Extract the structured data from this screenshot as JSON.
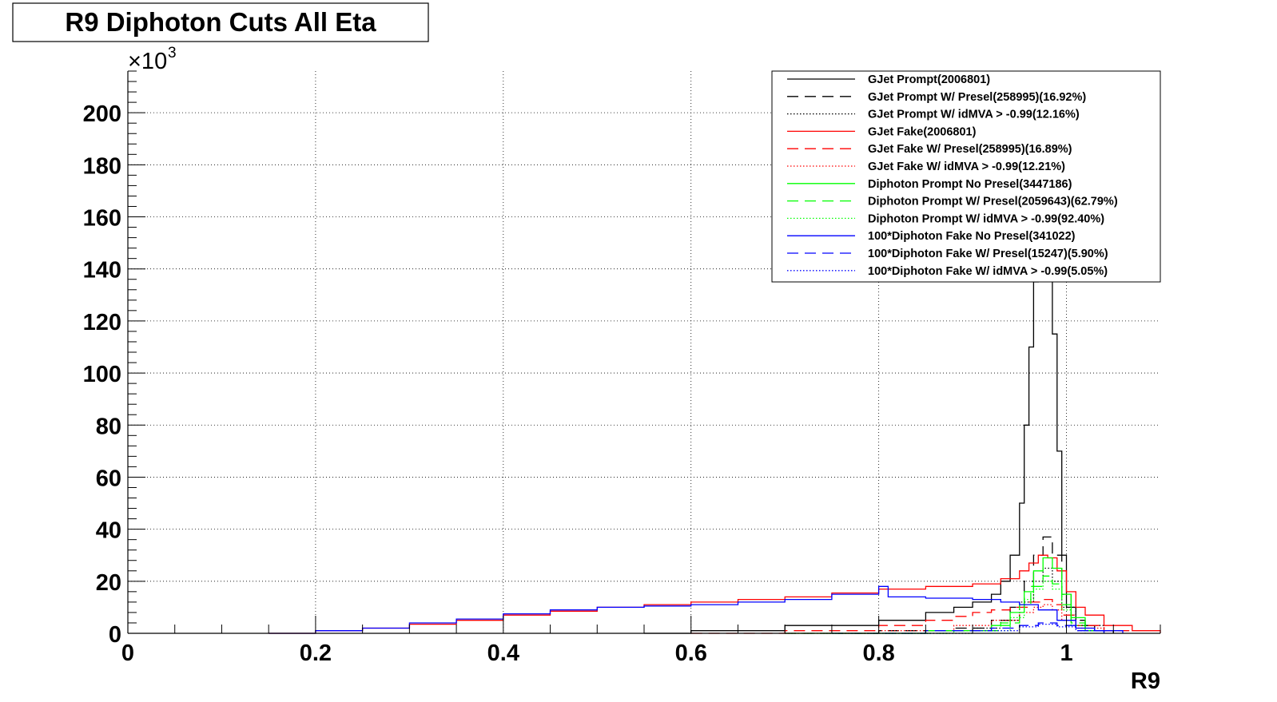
{
  "chart_data": {
    "type": "line",
    "title": "R9 Diphoton Cuts All Eta",
    "xlabel": "R9",
    "ylabel": "",
    "y_multiplier_label": "×10",
    "y_multiplier_exponent": "3",
    "xlim": [
      0,
      1.1
    ],
    "ylim": [
      0,
      216
    ],
    "x_ticks": [
      0,
      0.2,
      0.4,
      0.6,
      0.8,
      1
    ],
    "x_tick_labels": [
      "0",
      "0.2",
      "0.4",
      "0.6",
      "0.8",
      "1"
    ],
    "y_ticks": [
      0,
      20,
      40,
      60,
      80,
      100,
      120,
      140,
      160,
      180,
      200
    ],
    "y_tick_labels": [
      "0",
      "20",
      "40",
      "60",
      "80",
      "100",
      "120",
      "140",
      "160",
      "180",
      "200"
    ],
    "grid": true,
    "legend_position": "top-right",
    "colors": {
      "black": "#000000",
      "red": "#ff0000",
      "green": "#00ff00",
      "blue": "#0000ff"
    },
    "series": [
      {
        "name": "GJet Prompt(2006801)",
        "color": "black",
        "style": "solid",
        "points": [
          [
            0.55,
            0
          ],
          [
            0.6,
            1
          ],
          [
            0.7,
            3
          ],
          [
            0.8,
            5
          ],
          [
            0.85,
            8
          ],
          [
            0.88,
            10
          ],
          [
            0.9,
            12
          ],
          [
            0.92,
            15
          ],
          [
            0.93,
            20
          ],
          [
            0.94,
            30
          ],
          [
            0.95,
            50
          ],
          [
            0.955,
            80
          ],
          [
            0.96,
            110
          ],
          [
            0.965,
            135
          ],
          [
            0.97,
            160
          ],
          [
            0.975,
            175
          ],
          [
            0.98,
            150
          ],
          [
            0.985,
            115
          ],
          [
            0.99,
            70
          ],
          [
            0.995,
            30
          ],
          [
            1.0,
            10
          ],
          [
            1.01,
            3
          ],
          [
            1.03,
            1
          ],
          [
            1.05,
            0
          ]
        ]
      },
      {
        "name": "GJet Prompt W/ Presel(258995)(16.92%)",
        "color": "black",
        "style": "dashed",
        "points": [
          [
            0.7,
            0
          ],
          [
            0.8,
            1
          ],
          [
            0.88,
            2
          ],
          [
            0.92,
            5
          ],
          [
            0.94,
            10
          ],
          [
            0.955,
            20
          ],
          [
            0.965,
            30
          ],
          [
            0.975,
            37
          ],
          [
            0.985,
            30
          ],
          [
            0.995,
            15
          ],
          [
            1.005,
            5
          ],
          [
            1.02,
            1
          ],
          [
            1.05,
            0
          ]
        ]
      },
      {
        "name": "GJet Prompt W/ idMVA > -0.99(12.16%)",
        "color": "black",
        "style": "dotted",
        "points": [
          [
            0.75,
            0
          ],
          [
            0.85,
            1
          ],
          [
            0.9,
            2
          ],
          [
            0.93,
            5
          ],
          [
            0.95,
            12
          ],
          [
            0.965,
            20
          ],
          [
            0.975,
            25
          ],
          [
            0.985,
            20
          ],
          [
            0.995,
            10
          ],
          [
            1.01,
            3
          ],
          [
            1.04,
            0
          ]
        ]
      },
      {
        "name": "GJet Fake(2006801)",
        "color": "red",
        "style": "solid",
        "points": [
          [
            0.15,
            0
          ],
          [
            0.2,
            1
          ],
          [
            0.25,
            2
          ],
          [
            0.3,
            3.5
          ],
          [
            0.35,
            5
          ],
          [
            0.4,
            7
          ],
          [
            0.45,
            8.5
          ],
          [
            0.5,
            10
          ],
          [
            0.55,
            11
          ],
          [
            0.6,
            12
          ],
          [
            0.65,
            13
          ],
          [
            0.7,
            14
          ],
          [
            0.75,
            15.5
          ],
          [
            0.8,
            17
          ],
          [
            0.85,
            18
          ],
          [
            0.9,
            19
          ],
          [
            0.93,
            21
          ],
          [
            0.95,
            24
          ],
          [
            0.96,
            27
          ],
          [
            0.97,
            30
          ],
          [
            0.98,
            29
          ],
          [
            0.99,
            24
          ],
          [
            1.0,
            16
          ],
          [
            1.01,
            10
          ],
          [
            1.02,
            7
          ],
          [
            1.04,
            3
          ],
          [
            1.07,
            1
          ],
          [
            1.1,
            0
          ]
        ]
      },
      {
        "name": "GJet Fake W/ Presel(258995)(16.89%)",
        "color": "red",
        "style": "dashed",
        "points": [
          [
            0.6,
            0
          ],
          [
            0.7,
            1
          ],
          [
            0.8,
            3
          ],
          [
            0.85,
            5
          ],
          [
            0.88,
            6.5
          ],
          [
            0.9,
            8
          ],
          [
            0.92,
            9
          ],
          [
            0.94,
            10
          ],
          [
            0.96,
            12
          ],
          [
            0.975,
            13
          ],
          [
            0.985,
            11
          ],
          [
            0.995,
            7
          ],
          [
            1.01,
            3
          ],
          [
            1.04,
            1
          ],
          [
            1.07,
            0
          ]
        ]
      },
      {
        "name": "GJet Fake W/ idMVA > -0.99(12.21%)",
        "color": "red",
        "style": "dotted",
        "points": [
          [
            0.7,
            0
          ],
          [
            0.8,
            1
          ],
          [
            0.88,
            3
          ],
          [
            0.92,
            5
          ],
          [
            0.95,
            8
          ],
          [
            0.965,
            10
          ],
          [
            0.975,
            11
          ],
          [
            0.985,
            9
          ],
          [
            0.995,
            5
          ],
          [
            1.01,
            2
          ],
          [
            1.04,
            0
          ]
        ]
      },
      {
        "name": "Diphoton Prompt No Presel(3447186)",
        "color": "green",
        "style": "solid",
        "points": [
          [
            0.7,
            0
          ],
          [
            0.85,
            1
          ],
          [
            0.92,
            3
          ],
          [
            0.94,
            8
          ],
          [
            0.955,
            16
          ],
          [
            0.965,
            24
          ],
          [
            0.975,
            29
          ],
          [
            0.985,
            25
          ],
          [
            0.995,
            15
          ],
          [
            1.005,
            6
          ],
          [
            1.02,
            1
          ],
          [
            1.04,
            0
          ]
        ]
      },
      {
        "name": "Diphoton Prompt W/ Presel(2059643)(62.79%)",
        "color": "green",
        "style": "dashed",
        "points": [
          [
            0.75,
            0
          ],
          [
            0.88,
            1
          ],
          [
            0.93,
            4
          ],
          [
            0.95,
            11
          ],
          [
            0.962,
            18
          ],
          [
            0.975,
            22
          ],
          [
            0.985,
            19
          ],
          [
            0.995,
            11
          ],
          [
            1.005,
            4
          ],
          [
            1.02,
            1
          ],
          [
            1.04,
            0
          ]
        ]
      },
      {
        "name": "Diphoton Prompt W/ idMVA > -0.99(92.40%)",
        "color": "green",
        "style": "dotted",
        "points": [
          [
            0.8,
            0
          ],
          [
            0.9,
            1
          ],
          [
            0.94,
            6
          ],
          [
            0.955,
            13
          ],
          [
            0.965,
            17
          ],
          [
            0.975,
            20
          ],
          [
            0.985,
            17
          ],
          [
            0.995,
            9
          ],
          [
            1.005,
            3
          ],
          [
            1.02,
            0
          ]
        ]
      },
      {
        "name": "100*Diphoton Fake No Presel(341022)",
        "color": "blue",
        "style": "solid",
        "points": [
          [
            0.15,
            0
          ],
          [
            0.2,
            1
          ],
          [
            0.25,
            2
          ],
          [
            0.3,
            4
          ],
          [
            0.35,
            5.5
          ],
          [
            0.4,
            7.5
          ],
          [
            0.45,
            9
          ],
          [
            0.5,
            10
          ],
          [
            0.55,
            10.5
          ],
          [
            0.6,
            11
          ],
          [
            0.65,
            12
          ],
          [
            0.7,
            13
          ],
          [
            0.75,
            15
          ],
          [
            0.8,
            18
          ],
          [
            0.81,
            14
          ],
          [
            0.85,
            13.5
          ],
          [
            0.9,
            13
          ],
          [
            0.93,
            12
          ],
          [
            0.95,
            11
          ],
          [
            0.97,
            9
          ],
          [
            0.99,
            5
          ],
          [
            1.01,
            2
          ],
          [
            1.03,
            1
          ],
          [
            1.06,
            0
          ]
        ]
      },
      {
        "name": "100*Diphoton Fake W/ Presel(15247)(5.90%)",
        "color": "blue",
        "style": "dashed",
        "points": [
          [
            0.75,
            0
          ],
          [
            0.85,
            1
          ],
          [
            0.92,
            2
          ],
          [
            0.95,
            3
          ],
          [
            0.97,
            4
          ],
          [
            0.99,
            3
          ],
          [
            1.01,
            1
          ],
          [
            1.04,
            0
          ]
        ]
      },
      {
        "name": "100*Diphoton Fake W/ idMVA > -0.99(5.05%)",
        "color": "blue",
        "style": "dotted",
        "points": [
          [
            0.8,
            0
          ],
          [
            0.9,
            1
          ],
          [
            0.95,
            2.5
          ],
          [
            0.97,
            3.5
          ],
          [
            0.99,
            2.5
          ],
          [
            1.01,
            1
          ],
          [
            1.04,
            0
          ]
        ]
      }
    ]
  }
}
